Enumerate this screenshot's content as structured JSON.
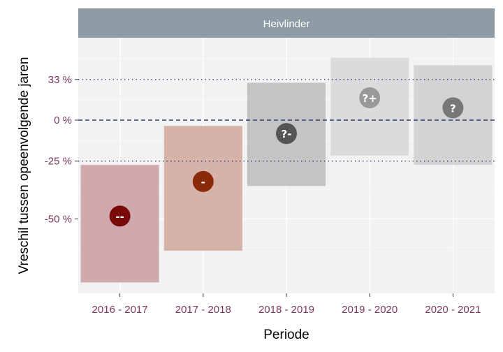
{
  "chart_data": {
    "type": "interval",
    "panel_title": "Heivlinder",
    "xlabel": "Periode",
    "ylabel": "Vreschil tussen opeenvolgende jaren",
    "y_scale": "log",
    "y_ticks": [
      {
        "value": 33,
        "label": "33 %"
      },
      {
        "value": 0,
        "label": "0 %"
      },
      {
        "value": -25,
        "label": "-25 %"
      },
      {
        "value": -50,
        "label": "-50 %"
      }
    ],
    "reference_lines": [
      {
        "value": 33,
        "style": "dotted",
        "color": "#2e3b6e"
      },
      {
        "value": 0,
        "style": "dashed",
        "color": "#2e3b6e"
      },
      {
        "value": -25,
        "style": "dotted",
        "color": "#2e3b6e"
      }
    ],
    "categories": [
      "2016 - 2017",
      "2017 - 2018",
      "2018 - 2019",
      "2019 - 2020",
      "2020 - 2021"
    ],
    "estimates": [
      -49,
      -35,
      -9,
      17,
      9
    ],
    "lower": [
      -68,
      -60,
      -37,
      -22,
      -27
    ],
    "upper": [
      -27,
      -4,
      30,
      55,
      47
    ],
    "labels": [
      "--",
      "-",
      "?-",
      "?+",
      "?"
    ],
    "colors": [
      "#7a0a0a",
      "#8b2a0a",
      "#555555",
      "#999999",
      "#777777"
    ],
    "band_colors": [
      "#cfa9ae",
      "#d5b3a8",
      "#c4c4c4",
      "#dbdbdb",
      "#d3d3d3"
    ],
    "ylim": [
      -70,
      70
    ],
    "colors_theme": {
      "panel_bg": "#f2f2f2",
      "strip_bg": "#8e9ba5",
      "tick_color": "#7a3860"
    }
  }
}
